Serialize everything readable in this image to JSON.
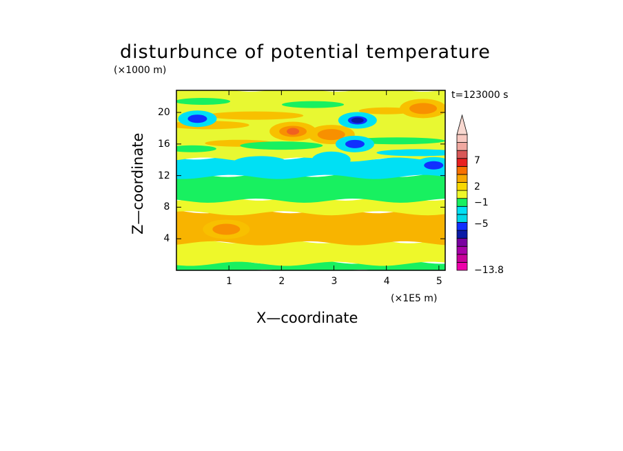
{
  "chart_data": {
    "type": "heatmap",
    "title": "disturbunce of potential temperature",
    "time_label": "t=123000 s",
    "xlabel": "X—coordinate",
    "ylabel": "Z—coordinate",
    "x_unit": "(×1E5 m)",
    "y_unit": "(×1000 m)",
    "xlim": [
      0,
      5.12
    ],
    "ylim": [
      0,
      22.8
    ],
    "xticks": [
      1,
      2,
      3,
      4,
      5
    ],
    "yticks": [
      4,
      8,
      12,
      16,
      20
    ],
    "colorbar": {
      "labels": [
        {
          "text": "7",
          "value": 7
        },
        {
          "text": "2",
          "value": 2
        },
        {
          "text": "−1",
          "value": -1
        },
        {
          "text": "−5",
          "value": -5
        },
        {
          "text": "−13.8",
          "value": -13.8
        }
      ],
      "colors": [
        "#ee00aa",
        "#c8009a",
        "#a800a8",
        "#7a00a0",
        "#0a1aa6",
        "#1030ff",
        "#00d8e8",
        "#00e0f4",
        "#18f060",
        "#eef82a",
        "#f8d800",
        "#f8a800",
        "#f87000",
        "#e82020",
        "#d85858",
        "#f0a8a0",
        "#f8c8c0"
      ],
      "extend_max": true
    },
    "bands": [
      {
        "z_from": 0.0,
        "z_to": 1.0,
        "level": "green"
      },
      {
        "z_from": 1.0,
        "z_to": 3.6,
        "level": "yellow"
      },
      {
        "z_from": 3.6,
        "z_to": 7.4,
        "level": "orange"
      },
      {
        "z_from": 7.4,
        "z_to": 9.0,
        "level": "yellow"
      },
      {
        "z_from": 9.0,
        "z_to": 12.0,
        "level": "green"
      },
      {
        "z_from": 12.0,
        "z_to": 14.2,
        "level": "cyan"
      },
      {
        "z_from": 14.2,
        "z_to": 22.8,
        "level": "yellow-green"
      }
    ],
    "features": [
      {
        "kind": "warm",
        "x": 2.22,
        "z": 17.6,
        "peak_level": "red"
      },
      {
        "kind": "warm",
        "x": 2.95,
        "z": 17.2,
        "peak_level": "orange"
      },
      {
        "kind": "cold",
        "x": 3.45,
        "z": 19.0,
        "peak_level": "dark-blue"
      },
      {
        "kind": "cold",
        "x": 3.4,
        "z": 16.0,
        "peak_level": "blue"
      },
      {
        "kind": "cold",
        "x": 2.95,
        "z": 14.0,
        "peak_level": "cyan"
      },
      {
        "kind": "cold",
        "x": 4.9,
        "z": 13.3,
        "peak_level": "blue"
      },
      {
        "kind": "warm",
        "x": 0.95,
        "z": 5.2,
        "peak_level": "orange"
      },
      {
        "kind": "warm",
        "x": 4.7,
        "z": 20.5,
        "peak_level": "orange"
      },
      {
        "kind": "cold",
        "x": 0.4,
        "z": 19.2,
        "peak_level": "blue"
      }
    ]
  }
}
